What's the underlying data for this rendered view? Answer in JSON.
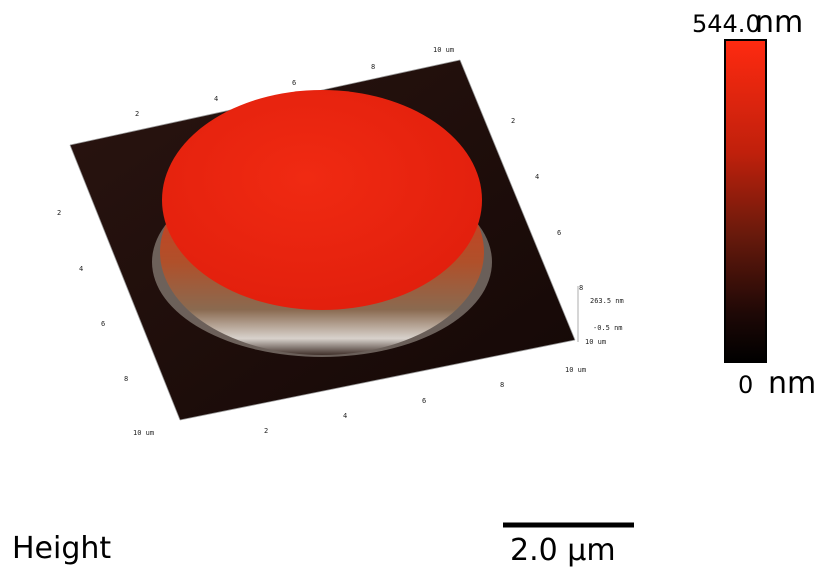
{
  "image": {
    "axes": {
      "back": [
        "2",
        "4",
        "6",
        "8",
        "10 um"
      ],
      "right": [
        "2",
        "4",
        "6",
        "8",
        "10 um"
      ],
      "left": [
        "2",
        "4",
        "6",
        "8",
        "10 um"
      ],
      "front": [
        "2",
        "4",
        "6",
        "8",
        "10 um"
      ],
      "z": [
        "263.5 nm",
        "-0.5 nm"
      ]
    },
    "colorbar": {
      "max": "544.0",
      "max_unit": "nm",
      "min": "0",
      "min_unit": "nm"
    },
    "channel": "Height",
    "scale_bar": "2.0 μm"
  }
}
